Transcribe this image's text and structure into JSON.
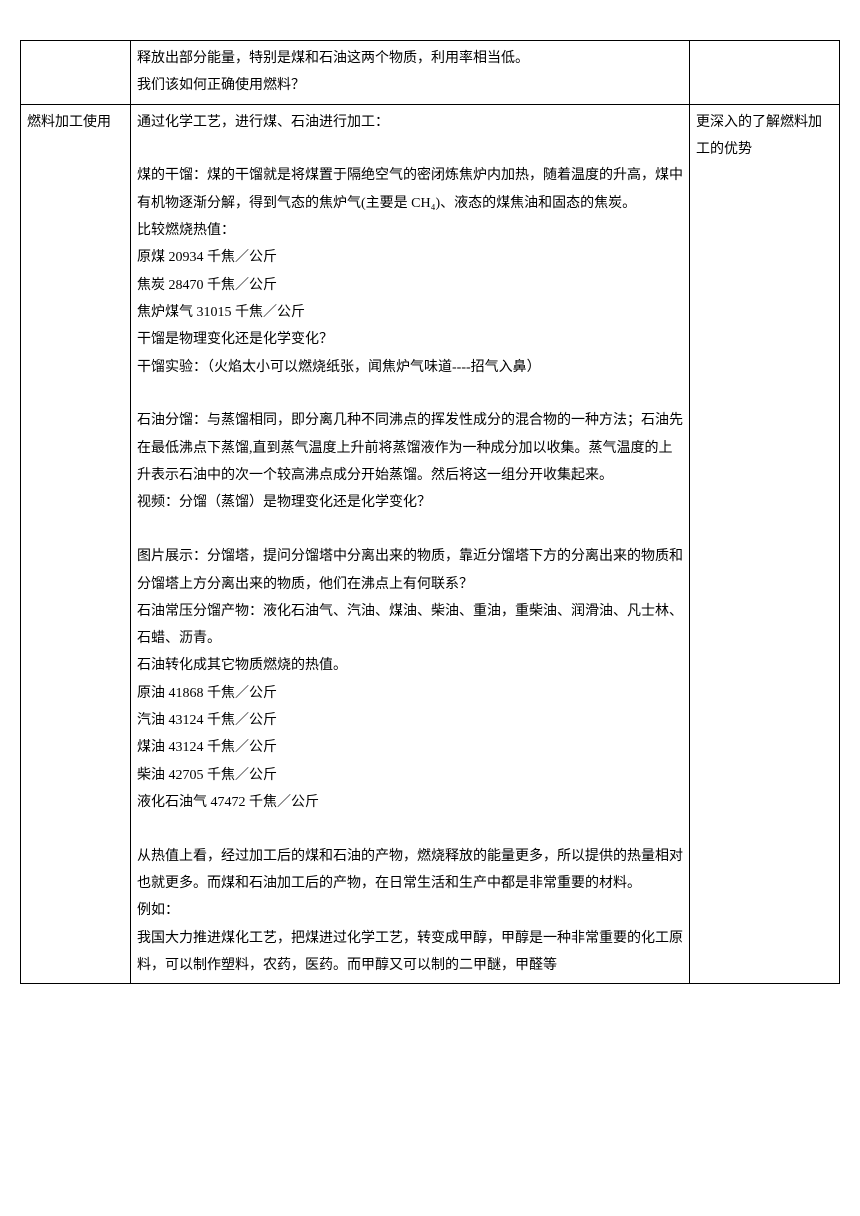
{
  "row1": {
    "col1": "",
    "col2_lines": [
      "释放出部分能量，特别是煤和石油这两个物质，利用率相当低。",
      "我们该如何正确使用燃料？"
    ],
    "col3": ""
  },
  "row2": {
    "col1": "燃料加工使用",
    "col2_sections": [
      [
        "通过化学工艺，进行煤、石油进行加工："
      ],
      [
        "煤的干馏：煤的干馏就是将煤置于隔绝空气的密闭炼焦炉内加热，随着温度的升高，煤中有机物逐渐分解，得到气态的焦炉气(主要是 CH₄)、液态的煤焦油和固态的焦炭。",
        "比较燃烧热值：",
        "原煤  20934 千焦／公斤",
        "焦炭  28470 千焦／公斤",
        "焦炉煤气  31015 千焦／公斤",
        "干馏是物理变化还是化学变化？",
        "干馏实验：（火焰太小可以燃烧纸张，闻焦炉气味道----招气入鼻）"
      ],
      [
        "石油分馏：与蒸馏相同，即分离几种不同沸点的挥发性成分的混合物的一种方法；石油先在最低沸点下蒸馏,直到蒸气温度上升前将蒸馏液作为一种成分加以收集。蒸气温度的上升表示石油中的次一个较高沸点成分开始蒸馏。然后将这一组分开收集起来。",
        "视频：分馏（蒸馏）是物理变化还是化学变化？"
      ],
      [
        "图片展示：分馏塔，提问分馏塔中分离出来的物质，靠近分馏塔下方的分离出来的物质和分馏塔上方分离出来的物质，他们在沸点上有何联系？",
        "石油常压分馏产物：液化石油气、汽油、煤油、柴油、重油，重柴油、润滑油、凡士林、石蜡、沥青。",
        "石油转化成其它物质燃烧的热值。",
        "原油  41868 千焦／公斤",
        "汽油  43124 千焦／公斤",
        "煤油  43124 千焦／公斤",
        "柴油  42705 千焦／公斤",
        "液化石油气  47472 千焦／公斤"
      ],
      [
        "从热值上看，经过加工后的煤和石油的产物，燃烧释放的能量更多，所以提供的热量相对也就更多。而煤和石油加工后的产物，在日常生活和生产中都是非常重要的材料。",
        "例如：",
        "我国大力推进煤化工艺，把煤进过化学工艺，转变成甲醇，甲醇是一种非常重要的化工原料，可以制作塑料，农药，医药。而甲醇又可以制的二甲醚，甲醛等"
      ]
    ],
    "col3": "更深入的了解燃料加工的优势"
  }
}
